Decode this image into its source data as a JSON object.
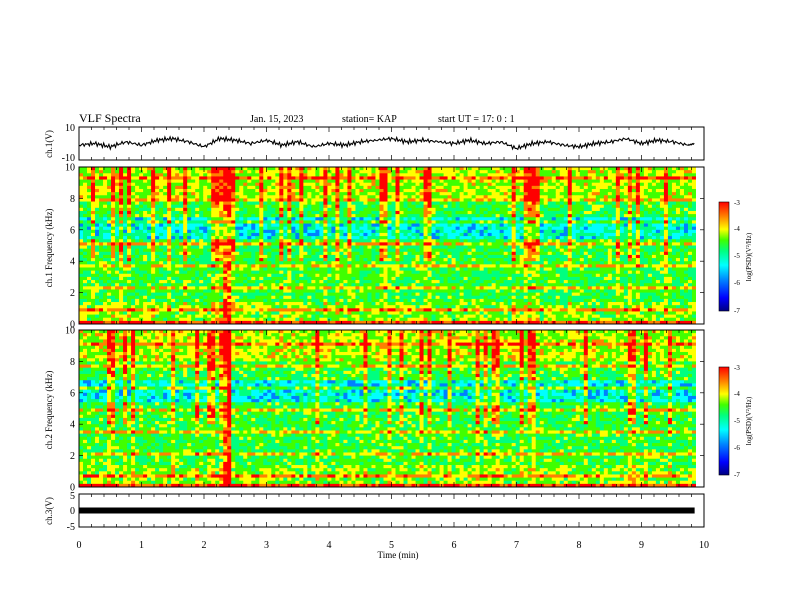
{
  "header": {
    "title": "VLF Spectra",
    "date": "Jan. 15, 2023",
    "station": "station= KAP",
    "start": "start  UT =  17: 0  : 1"
  },
  "chart_data": [
    {
      "type": "line",
      "panel": "ch1-waveform",
      "ylabel": "ch.1(V)",
      "ylim": [
        -10,
        10
      ],
      "yticks": [
        "10",
        "-10"
      ],
      "xlim": [
        0,
        10
      ],
      "series": [
        {
          "x": [
            0.0,
            0.25,
            0.5,
            0.75,
            1.0,
            1.25,
            1.5,
            1.75,
            2.0,
            2.25,
            2.5,
            2.75,
            3.0,
            3.25,
            3.5,
            3.75,
            4.0,
            4.25,
            4.5,
            4.75,
            5.0,
            5.25,
            5.5,
            5.75,
            6.0,
            6.25,
            6.5,
            6.75,
            7.0,
            7.25,
            7.5,
            7.75,
            8.0,
            8.25,
            8.5,
            8.75,
            9.0,
            9.25,
            9.5,
            9.75,
            9.85
          ],
          "values": [
            -1,
            0,
            -2,
            1,
            -1,
            2,
            3,
            1,
            -2,
            3,
            2,
            0,
            2,
            -1,
            1,
            -2,
            0,
            -1,
            1,
            2,
            3,
            1,
            2,
            1,
            0,
            2,
            0,
            1,
            -3,
            0,
            1,
            -1,
            -2,
            0,
            1,
            3,
            0,
            2,
            1,
            -1,
            0
          ]
        }
      ]
    },
    {
      "type": "heatmap",
      "panel": "ch1-spectrogram",
      "ylabel": "ch.1 Frequency  (kHz)",
      "ylim": [
        0,
        10
      ],
      "yticks": [
        "0",
        "2",
        "4",
        "6",
        "8",
        "10"
      ],
      "xlim": [
        0,
        10
      ],
      "colorbar": {
        "label": "log(PSD)(V²/Hz)",
        "range": [
          -7,
          -3
        ],
        "ticks": [
          "-3",
          "-4",
          "-5",
          "-6",
          "-7"
        ]
      }
    },
    {
      "type": "heatmap",
      "panel": "ch2-spectrogram",
      "ylabel": "ch.2 Frequency  (kHz)",
      "ylim": [
        0,
        10
      ],
      "yticks": [
        "0",
        "2",
        "4",
        "6",
        "8",
        "10"
      ],
      "xlim": [
        0,
        10
      ],
      "colorbar": {
        "label": "log(PSD)(V²/Hz)",
        "range": [
          -7,
          -3
        ],
        "ticks": [
          "-3",
          "-4",
          "-5",
          "-6",
          "-7"
        ]
      }
    },
    {
      "type": "line",
      "panel": "ch3-waveform",
      "ylabel": "ch.3(V)",
      "ylim": [
        -5,
        5
      ],
      "yticks": [
        "5",
        "0",
        "-5"
      ],
      "xlim": [
        0,
        10
      ],
      "series": [
        {
          "x": [
            0,
            9.85
          ],
          "values": [
            0,
            0
          ]
        }
      ]
    }
  ],
  "xaxis": {
    "label": "Time  (min)",
    "ticks": [
      "0",
      "1",
      "2",
      "3",
      "4",
      "5",
      "6",
      "7",
      "8",
      "9",
      "10"
    ]
  },
  "colors": {
    "colormap": [
      "#000080",
      "#0000ff",
      "#0080ff",
      "#00ffff",
      "#00ff80",
      "#40ff00",
      "#ffff00",
      "#ff8000",
      "#ff0000"
    ]
  }
}
